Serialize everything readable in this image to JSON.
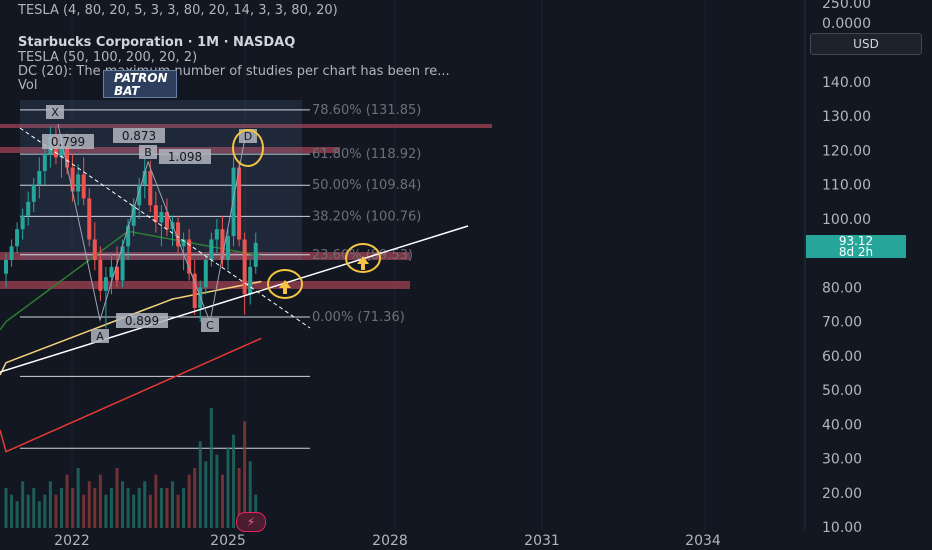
{
  "legend": {
    "line1": "TESLA (4, 80, 20, 5, 3, 3, 80, 20, 14, 3, 3, 80, 20)",
    "title": "Starbucks Corporation · 1M · NASDAQ",
    "line3": "TESLA (50, 100, 200, 20, 2)",
    "line4": "DC (20): The maximum number of studies per chart has been re...",
    "line5": "Vol"
  },
  "currency_button": "USD",
  "patron_label": {
    "line1": "PATRON",
    "line2": "BAT"
  },
  "price_tag": {
    "price": "93.12",
    "countdown": "8d 2h"
  },
  "bolt_icon": "lightning-icon",
  "colors": {
    "background": "#131722",
    "up_candle": "#26a69a",
    "down_candle": "#ef5350",
    "ma_yellow": "#f5d27a",
    "ma_red": "#e53935",
    "ma_green": "#2e7d32",
    "fib_line": "#d1d4dc",
    "zone_fill": "#8a3a4a",
    "highlight_circle": "#f5c542"
  },
  "chart_data": {
    "type": "candlestick",
    "price_axis": {
      "range": [
        10,
        250
      ],
      "ticks": [
        "10.00",
        "20.00",
        "30.00",
        "40.00",
        "50.00",
        "60.00",
        "70.00",
        "80.00",
        "90.00",
        "100.00",
        "110.00",
        "120.00",
        "130.00",
        "140.00",
        "250.00",
        "0.0000"
      ]
    },
    "time_axis": {
      "ticks": [
        "2022",
        "2025",
        "2028",
        "2031",
        "2034"
      ]
    },
    "fib_levels": [
      {
        "label": "78.60% (131.85)",
        "price": 131.85
      },
      {
        "label": "61.80% (118.92)",
        "price": 118.92
      },
      {
        "label": "50.00% (109.84)",
        "price": 109.84
      },
      {
        "label": "38.20% (100.76)",
        "price": 100.76
      },
      {
        "label": "23.60% (89.53)",
        "price": 89.53
      },
      {
        "label": "0.00% (71.36)",
        "price": 71.36
      }
    ],
    "fib_extra_lines": [
      54,
      33
    ],
    "pattern_points": [
      {
        "label": "X",
        "price": 126
      },
      {
        "label": "A",
        "price": 68
      },
      {
        "label": "B",
        "price": 117
      },
      {
        "label": "C",
        "price": 71
      },
      {
        "label": "D",
        "price": 117
      }
    ],
    "ratio_labels": [
      "0.799",
      "0.873",
      "1.098",
      "0.899"
    ],
    "current_price": 93.12,
    "candles": [
      [
        84,
        90,
        80,
        88
      ],
      [
        88,
        94,
        86,
        92
      ],
      [
        92,
        99,
        90,
        97
      ],
      [
        97,
        103,
        94,
        101
      ],
      [
        101,
        108,
        98,
        105
      ],
      [
        105,
        112,
        102,
        110
      ],
      [
        110,
        118,
        106,
        114
      ],
      [
        114,
        122,
        110,
        119
      ],
      [
        119,
        127,
        115,
        124
      ],
      [
        124,
        127,
        116,
        118
      ],
      [
        118,
        124,
        112,
        121
      ],
      [
        121,
        125,
        113,
        115
      ],
      [
        115,
        119,
        105,
        108
      ],
      [
        108,
        116,
        104,
        113
      ],
      [
        113,
        118,
        104,
        106
      ],
      [
        106,
        109,
        92,
        94
      ],
      [
        94,
        99,
        85,
        88
      ],
      [
        88,
        92,
        76,
        79
      ],
      [
        79,
        86,
        68,
        83
      ],
      [
        83,
        90,
        78,
        86
      ],
      [
        86,
        92,
        80,
        82
      ],
      [
        82,
        94,
        80,
        92
      ],
      [
        92,
        100,
        88,
        98
      ],
      [
        98,
        106,
        95,
        104
      ],
      [
        104,
        112,
        100,
        110
      ],
      [
        110,
        118,
        106,
        114
      ],
      [
        114,
        117,
        102,
        104
      ],
      [
        104,
        108,
        96,
        99
      ],
      [
        99,
        104,
        92,
        102
      ],
      [
        102,
        106,
        95,
        97
      ],
      [
        97,
        101,
        92,
        99
      ],
      [
        99,
        101,
        90,
        92
      ],
      [
        92,
        96,
        85,
        94
      ],
      [
        94,
        97,
        82,
        84
      ],
      [
        84,
        88,
        72,
        74
      ],
      [
        74,
        82,
        70,
        80
      ],
      [
        80,
        90,
        78,
        88
      ],
      [
        88,
        96,
        86,
        94
      ],
      [
        94,
        100,
        90,
        97
      ],
      [
        97,
        101,
        86,
        88
      ],
      [
        88,
        97,
        85,
        95
      ],
      [
        95,
        118,
        92,
        115
      ],
      [
        115,
        117,
        92,
        94
      ],
      [
        94,
        96,
        72,
        78
      ],
      [
        78,
        88,
        75,
        86
      ],
      [
        86,
        96,
        84,
        93
      ]
    ],
    "volume": [
      6,
      5,
      4,
      7,
      5,
      6,
      4,
      5,
      7,
      5,
      6,
      8,
      6,
      9,
      5,
      7,
      6,
      8,
      5,
      6,
      9,
      7,
      6,
      5,
      6,
      7,
      5,
      8,
      6,
      6,
      7,
      5,
      6,
      8,
      9,
      13,
      10,
      18,
      11,
      8,
      12,
      14,
      9,
      16,
      10,
      5
    ]
  }
}
